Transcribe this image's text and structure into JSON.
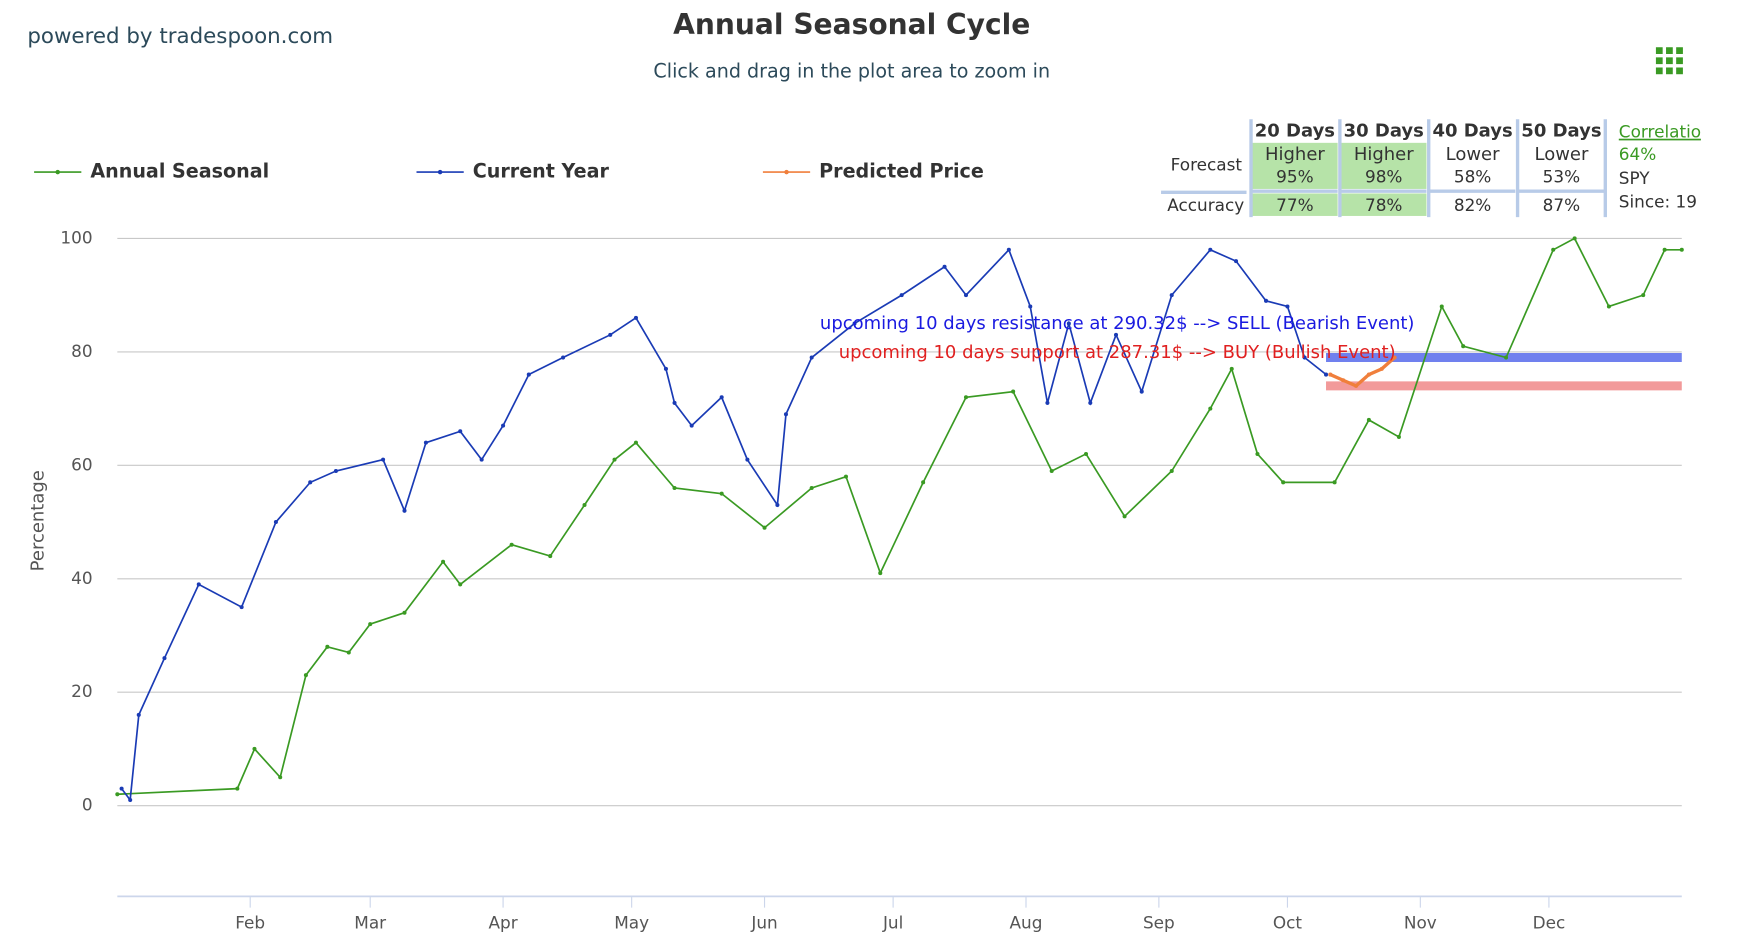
{
  "brand": "powered by tradespoon.com",
  "chart_data": {
    "type": "line",
    "title": "Annual Seasonal Cycle",
    "subtitle": "Click and drag in the plot area to zoom in",
    "y_label": "Percentage",
    "xlim": [
      0,
      365
    ],
    "xticks": [
      {
        "value": 31,
        "label": "Feb"
      },
      {
        "value": 59,
        "label": "Mar"
      },
      {
        "value": 90,
        "label": "Apr"
      },
      {
        "value": 120,
        "label": "May"
      },
      {
        "value": 151,
        "label": "Jun"
      },
      {
        "value": 181,
        "label": "Jul"
      },
      {
        "value": 212,
        "label": "Aug"
      },
      {
        "value": 243,
        "label": "Sep"
      },
      {
        "value": 273,
        "label": "Oct"
      },
      {
        "value": 304,
        "label": "Nov"
      },
      {
        "value": 334,
        "label": "Dec"
      }
    ],
    "ylim": [
      -16,
      100
    ],
    "yticks": [
      0,
      20,
      40,
      60,
      80,
      100
    ],
    "grid": true,
    "series": [
      {
        "name": "Annual Seasonal",
        "color": "#3a9a23",
        "x": [
          0,
          28,
          32,
          38,
          44,
          49,
          54,
          59,
          67,
          76,
          80,
          92,
          101,
          109,
          116,
          121,
          130,
          141,
          151,
          162,
          170,
          178,
          188,
          198,
          209,
          218,
          226,
          235,
          246,
          255,
          260,
          266,
          272,
          284,
          292,
          299,
          309,
          314,
          324,
          335,
          340,
          348,
          356,
          361,
          365
        ],
        "values": [
          2,
          3,
          10,
          5,
          23,
          28,
          27,
          32,
          34,
          43,
          39,
          46,
          44,
          53,
          61,
          64,
          56,
          55,
          49,
          56,
          58,
          41,
          57,
          72,
          73,
          59,
          62,
          51,
          59,
          70,
          77,
          62,
          57,
          57,
          68,
          65,
          88,
          81,
          79,
          98,
          100,
          88,
          90,
          98,
          98
        ]
      },
      {
        "name": "Current Year",
        "color": "#1a3bb5",
        "x": [
          1,
          3,
          5,
          11,
          19,
          29,
          37,
          45,
          51,
          62,
          67,
          72,
          80,
          85,
          90,
          96,
          104,
          115,
          121,
          128,
          130,
          134,
          141,
          147,
          154,
          156,
          162,
          172,
          183,
          193,
          198,
          208,
          213,
          217,
          222,
          227,
          233,
          239,
          246,
          255,
          261,
          268,
          273,
          277,
          282
        ],
        "values": [
          3,
          1,
          16,
          26,
          39,
          35,
          50,
          57,
          59,
          61,
          52,
          64,
          66,
          61,
          67,
          76,
          79,
          83,
          86,
          77,
          71,
          67,
          72,
          61,
          53,
          69,
          79,
          85,
          90,
          95,
          90,
          98,
          88,
          71,
          85,
          71,
          83,
          73,
          90,
          98,
          96,
          89,
          88,
          79,
          76
        ]
      },
      {
        "name": "Predicted Price",
        "color": "#f07f3c",
        "x": [
          283,
          286,
          289,
          292,
          295,
          298
        ],
        "values": [
          76,
          75,
          74,
          76,
          77,
          79
        ]
      }
    ],
    "bands": [
      {
        "value": 79,
        "start": 282,
        "color": "#7080ee",
        "text": "upcoming 10 days resistance at 290.32$ --> SELL (Bearish Event)",
        "text_color": "#1a1ae0"
      },
      {
        "value": 74,
        "start": 282,
        "color": "#f29a9a",
        "text": "upcoming 10 days support at 287.31$ --> BUY (Bullish Event)",
        "text_color": "#e02020"
      }
    ]
  },
  "forecast_table": {
    "columns": [
      "20 Days",
      "30 Days",
      "40 Days",
      "50 Days"
    ],
    "forecast_label": "Forecast",
    "forecast": [
      [
        "Higher",
        "95%"
      ],
      [
        "Higher",
        "98%"
      ],
      [
        "Lower",
        "58%"
      ],
      [
        "Lower",
        "53%"
      ]
    ],
    "accuracy_label": "Accuracy",
    "accuracy": [
      "77%",
      "78%",
      "82%",
      "87%"
    ],
    "highlight_columns": [
      0,
      1
    ],
    "correlation": {
      "title": "Correlation",
      "value": "64%",
      "symbol": "SPY",
      "since": "Since: 19"
    }
  }
}
